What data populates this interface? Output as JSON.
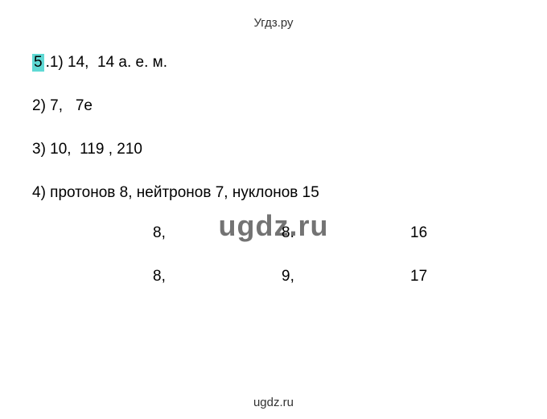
{
  "header": "Угдз.ру",
  "footer": "ugdz.ru",
  "watermark": "ugdz.ru",
  "item5": {
    "prefix": "5",
    "l1": ".1) 14,  14 а. е. м.",
    "l2": "2) 7,   7е",
    "l3": "3) 10,  119 , 210",
    "l4": "4) протонов 8, нейтронов 7, нуклонов 15"
  },
  "table": {
    "r1c1": "8,",
    "r1c2": "8.",
    "r1c3": "16",
    "r2c1": "8,",
    "r2c2": "9,",
    "r2c3": "17"
  }
}
